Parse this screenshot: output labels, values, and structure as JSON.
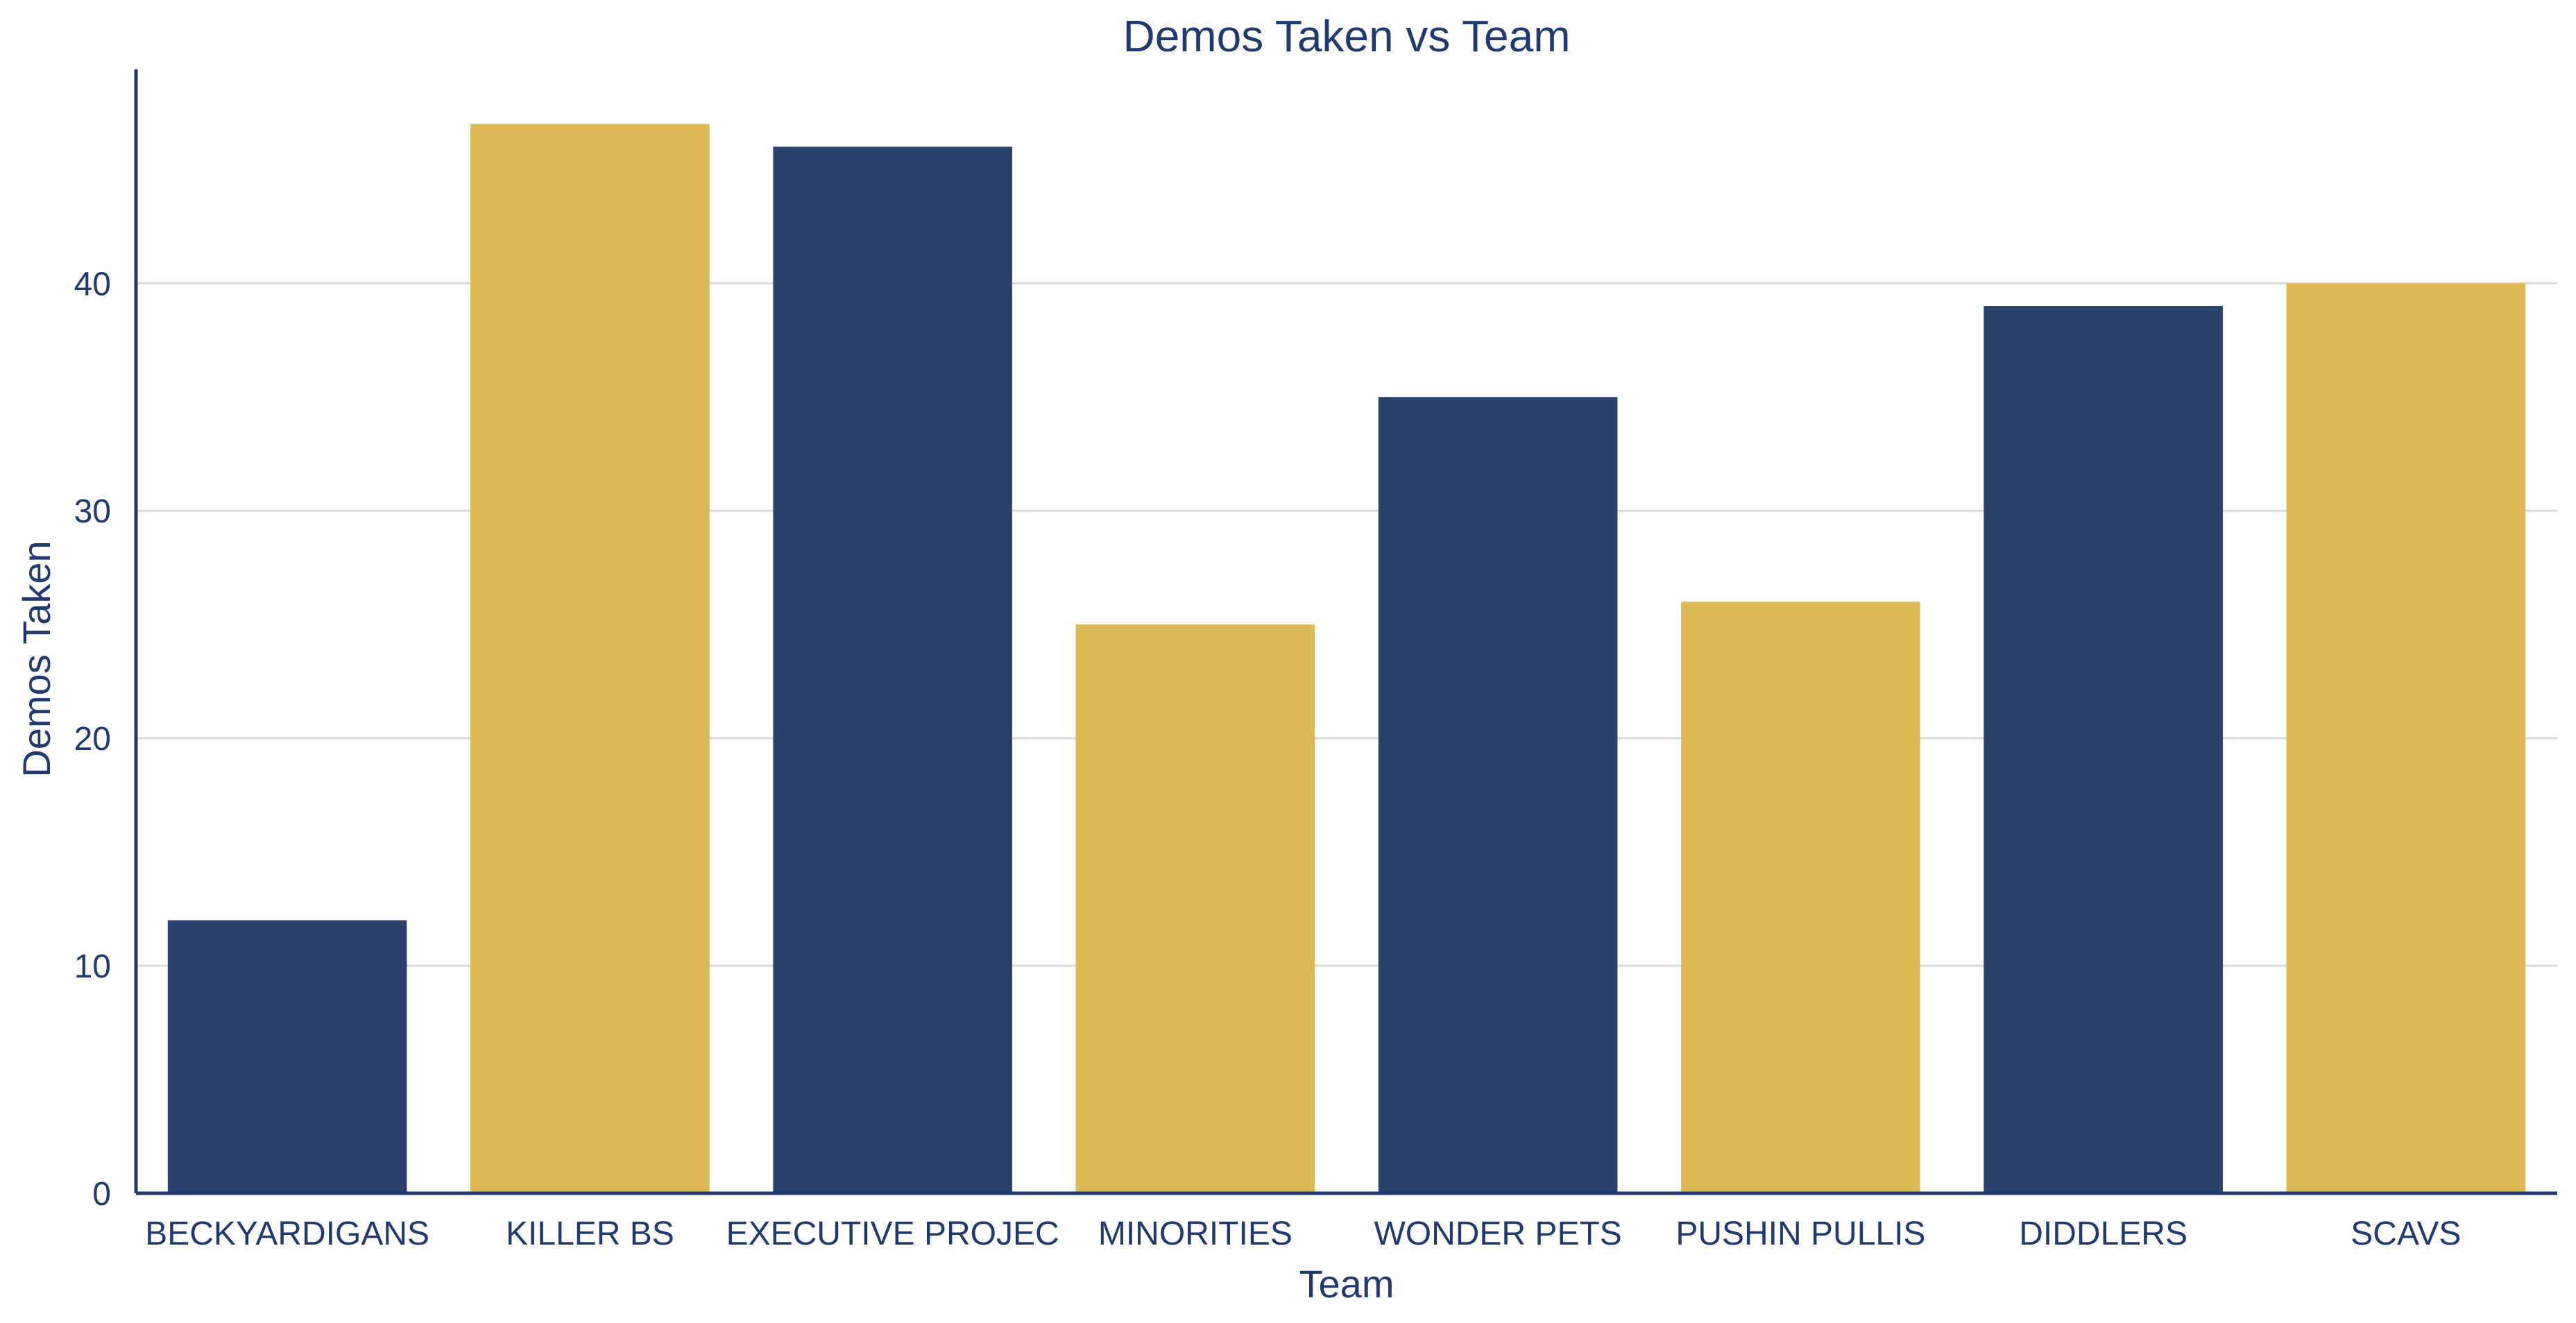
{
  "chart_data": {
    "type": "bar",
    "title": "Demos Taken vs Team",
    "xlabel": "Team",
    "ylabel": "Demos Taken",
    "categories": [
      "BECKYARDIGANS",
      "KILLER BS",
      "EXECUTIVE PROJEC",
      "MINORITIES",
      "WONDER PETS",
      "PUSHIN PULLIS",
      "DIDDLERS",
      "SCAVS"
    ],
    "values": [
      12,
      47,
      46,
      25,
      35,
      26,
      39,
      40
    ],
    "ylim": [
      0,
      49.4
    ],
    "yticks": [
      0,
      10,
      20,
      30,
      40
    ],
    "grid": true,
    "colors": {
      "navy": "#2B426F",
      "gold": "#DEBA57",
      "text": "#1F3A73",
      "grid": "#D9D9D9",
      "axis": "#1F3A73"
    },
    "bar_colors": [
      "navy",
      "gold",
      "navy",
      "gold",
      "navy",
      "gold",
      "navy",
      "gold"
    ]
  }
}
